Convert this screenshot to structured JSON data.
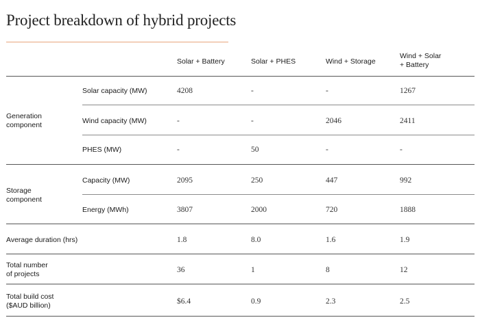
{
  "title": "Project breakdown of hybrid projects",
  "columns": {
    "solar_battery": "Solar + Battery",
    "solar_phes": "Solar + PHES",
    "wind_storage": "Wind + Storage",
    "wind_solar_battery_line1": "Wind + Solar",
    "wind_solar_battery_line2": "+ Battery"
  },
  "groups": {
    "generation_line1": "Generation",
    "generation_line2": "component",
    "storage_line1": "Storage",
    "storage_line2": "component"
  },
  "rows": {
    "solar_capacity": {
      "label": "Solar capacity (MW)",
      "values": [
        "4208",
        "-",
        "-",
        "1267"
      ]
    },
    "wind_capacity": {
      "label": "Wind capacity (MW)",
      "values": [
        "-",
        "-",
        "2046",
        "2411"
      ]
    },
    "phes": {
      "label": "PHES (MW)",
      "values": [
        "-",
        "50",
        "-",
        "-"
      ]
    },
    "storage_capacity": {
      "label": "Capacity (MW)",
      "values": [
        "2095",
        "250",
        "447",
        "992"
      ]
    },
    "storage_energy": {
      "label": "Energy (MWh)",
      "values": [
        "3807",
        "2000",
        "720",
        "1888"
      ]
    },
    "avg_duration": {
      "label": "Average duration (hrs)",
      "values": [
        "1.8",
        "8.0",
        "1.6",
        "1.9"
      ]
    },
    "total_projects": {
      "label_line1": "Total number",
      "label_line2": "of projects",
      "values": [
        "36",
        "1",
        "8",
        "12"
      ]
    },
    "total_cost": {
      "label_line1": "Total build cost",
      "label_line2": "($AUD billion)",
      "values": [
        "$6.4",
        "0.9",
        "2.3",
        "2.5"
      ]
    }
  },
  "colors": {
    "title_rule": "#e8a37a",
    "rule": "#555555"
  }
}
